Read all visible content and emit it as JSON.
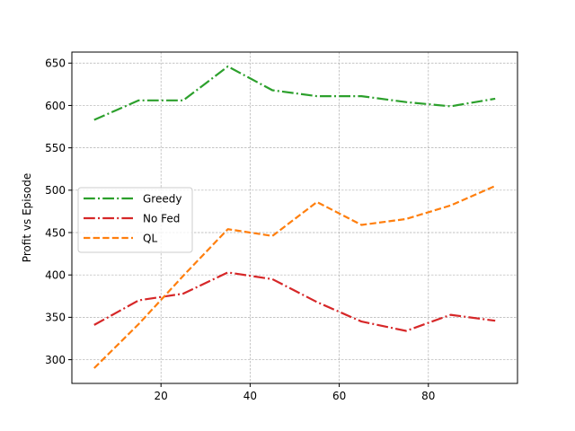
{
  "chart_data": {
    "type": "line",
    "title": "",
    "xlabel": "",
    "ylabel": "Profit vs Episode",
    "xlim": [
      0,
      100
    ],
    "ylim": [
      272,
      663
    ],
    "xticks": [
      20,
      40,
      60,
      80
    ],
    "yticks": [
      300,
      350,
      400,
      450,
      500,
      550,
      600,
      650
    ],
    "grid": true,
    "legend_position": "center-left",
    "x": [
      5,
      15,
      25,
      35,
      45,
      55,
      65,
      75,
      85,
      95
    ],
    "series": [
      {
        "name": "Greedy",
        "color": "#2ca02c",
        "dash": "dashdot",
        "values": [
          583,
          606,
          606,
          646,
          618,
          611,
          611,
          604,
          599,
          608
        ]
      },
      {
        "name": "No Fed",
        "color": "#d62728",
        "dash": "dashdot",
        "values": [
          341,
          370,
          378,
          403,
          395,
          368,
          345,
          334,
          353,
          346
        ]
      },
      {
        "name": "QL",
        "color": "#ff7f0e",
        "dash": "dashed",
        "values": [
          290,
          342,
          399,
          454,
          446,
          486,
          459,
          466,
          482,
          505
        ]
      }
    ]
  }
}
